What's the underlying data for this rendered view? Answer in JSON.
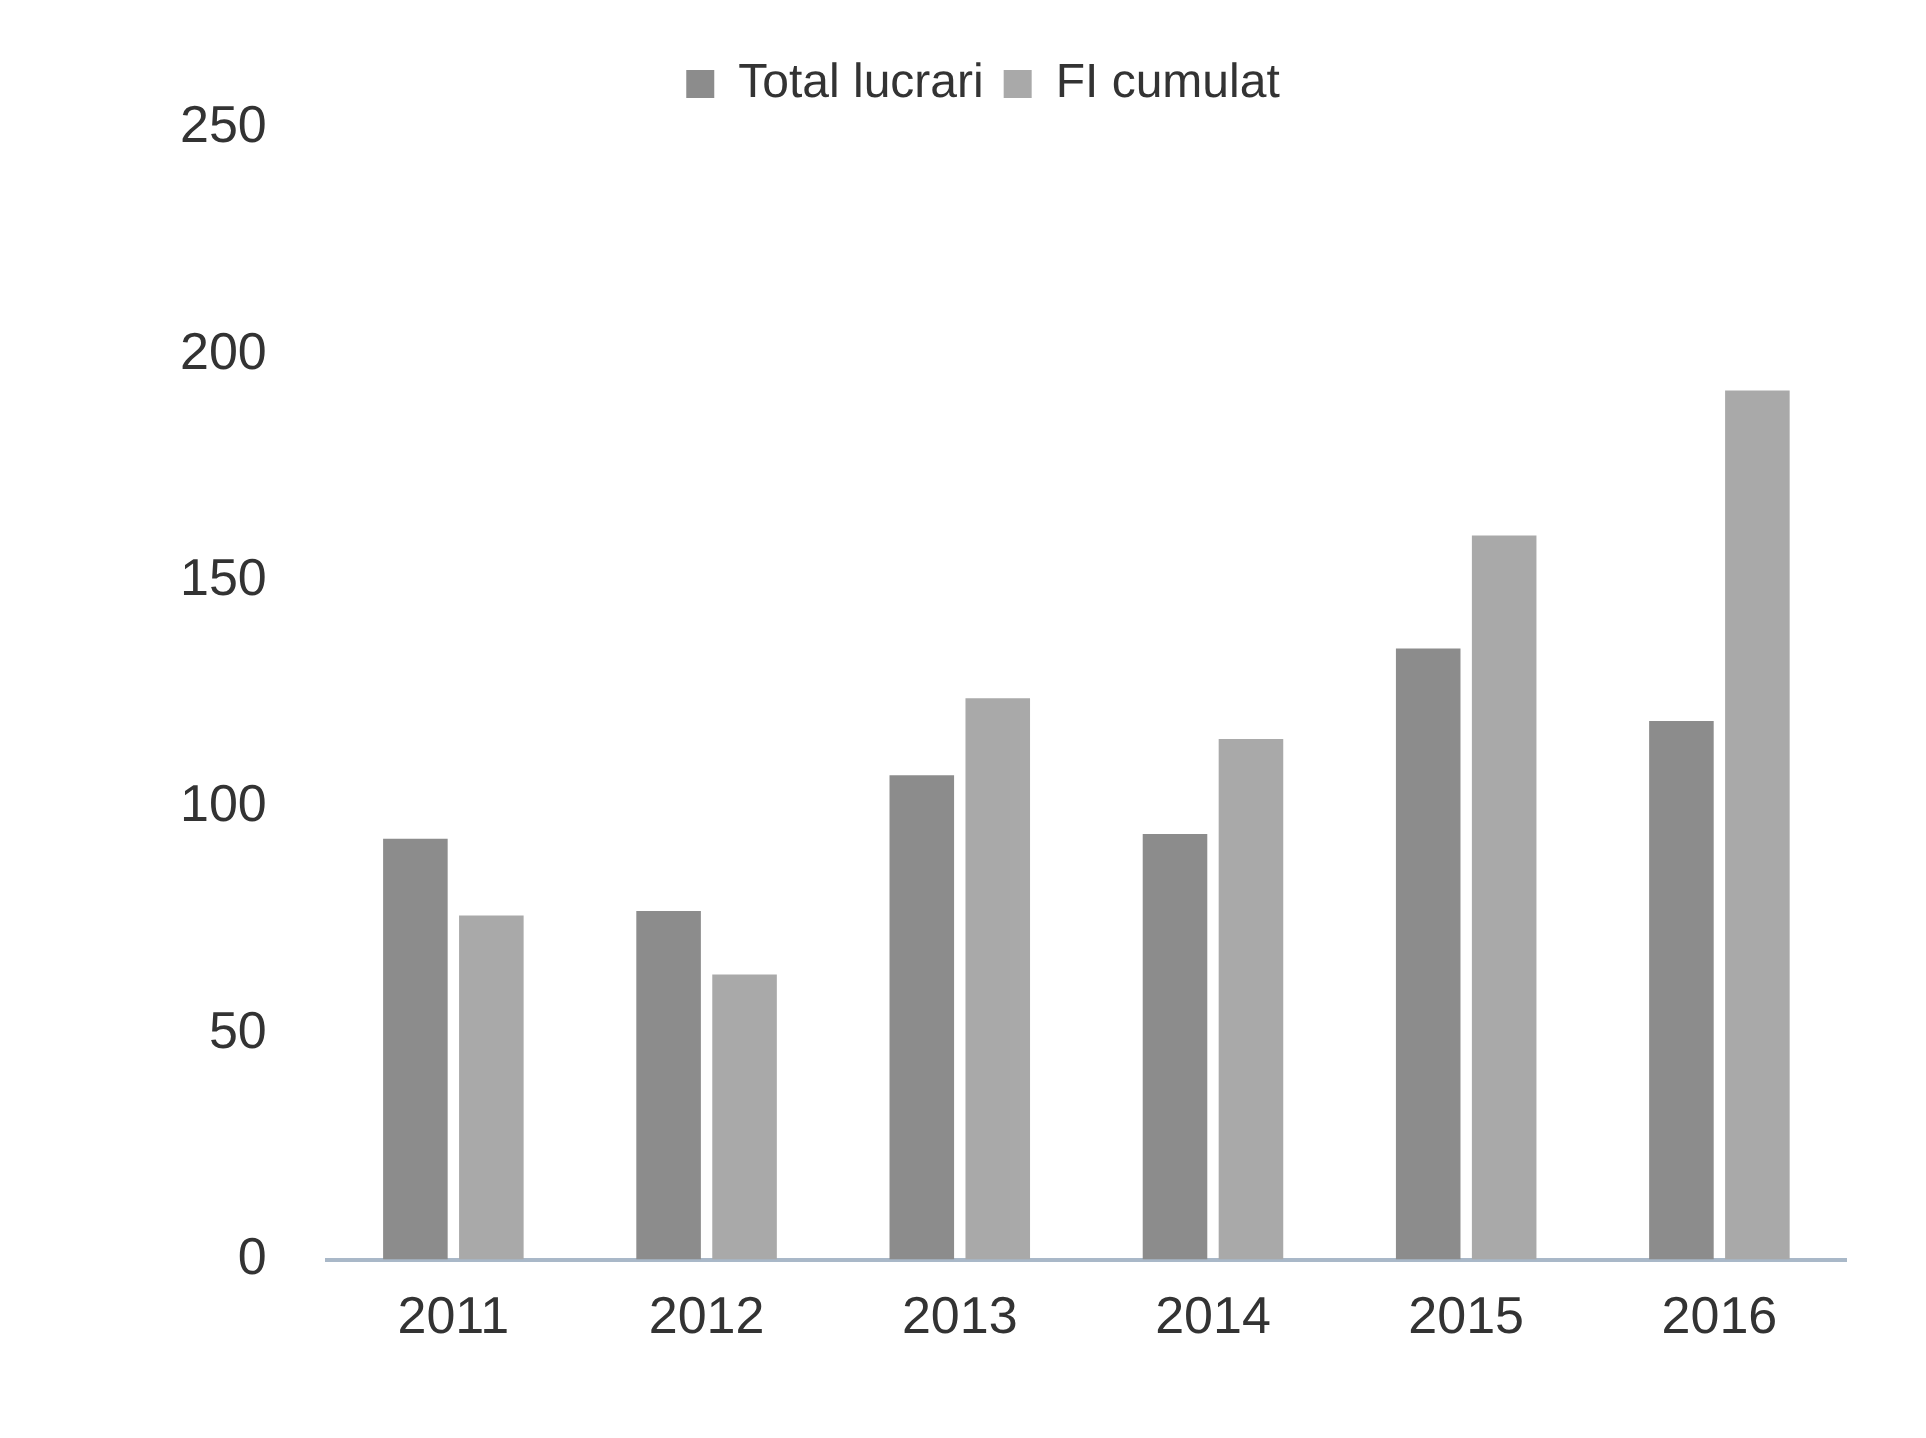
{
  "chart_data": {
    "type": "bar",
    "categories": [
      "2011",
      "2012",
      "2013",
      "2014",
      "2015",
      "2016"
    ],
    "series": [
      {
        "name": "Total lucrari",
        "color": "#8c8c8c",
        "values": [
          93,
          77,
          107,
          94,
          135,
          119
        ]
      },
      {
        "name": "FI cumulat",
        "color": "#a9a9a9",
        "values": [
          76,
          63,
          124,
          115,
          160,
          192
        ]
      }
    ],
    "ylim": [
      0,
      250
    ],
    "yticks": [
      0,
      50,
      100,
      150,
      200,
      250
    ],
    "grid": false,
    "legend": "top"
  }
}
